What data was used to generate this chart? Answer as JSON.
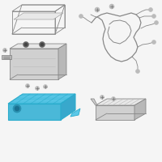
{
  "background_color": "#f5f5f5",
  "highlight_color": "#5bc8e8",
  "line_color": "#888888",
  "dark_gray": "#666666",
  "light_gray": "#bbbbbb",
  "fill_light": "#e8e8e8",
  "fill_mid": "#d0d0d0",
  "fill_dark": "#b8b8b8",
  "figsize": [
    2.0,
    2.0
  ],
  "dpi": 100
}
